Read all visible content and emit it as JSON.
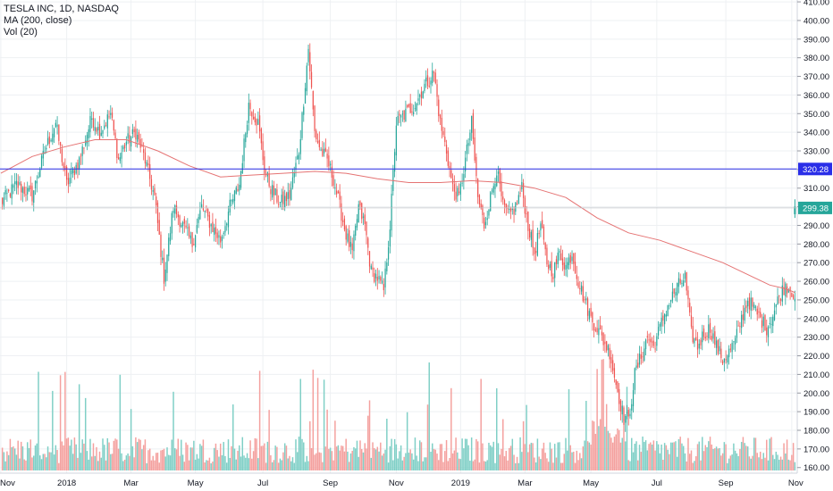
{
  "chart_data": {
    "type": "candlestick",
    "symbol_line": "TESLA INC, 1D, NASDAQ",
    "indicators": [
      "MA (200, close)",
      "Vol (20)"
    ],
    "y_ticks": [
      160,
      170,
      180,
      190,
      200,
      210,
      220,
      230,
      240,
      250,
      260,
      270,
      280,
      290,
      300,
      310,
      320,
      330,
      340,
      350,
      360,
      370,
      380,
      390,
      400,
      410
    ],
    "y_tick_labels": [
      "160.00",
      "170.00",
      "180.00",
      "190.00",
      "200.00",
      "210.00",
      "220.00",
      "230.00",
      "240.00",
      "250.00",
      "260.00",
      "270.00",
      "280.00",
      "290.00",
      "300.00",
      "310.00",
      "320.00",
      "330.00",
      "340.00",
      "350.00",
      "360.00",
      "370.00",
      "380.00",
      "390.00",
      "400.00",
      "410.00"
    ],
    "ylim": [
      157,
      411
    ],
    "x_ticks": [
      {
        "label": "Nov",
        "index": 0
      },
      {
        "label": "2018",
        "index": 42
      },
      {
        "label": "Mar",
        "index": 83
      },
      {
        "label": "May",
        "index": 124
      },
      {
        "label": "Jul",
        "index": 167
      },
      {
        "label": "Sep",
        "index": 210
      },
      {
        "label": "Nov",
        "index": 252
      },
      {
        "label": "2019",
        "index": 293
      },
      {
        "label": "Mar",
        "index": 334
      },
      {
        "label": "May",
        "index": 376
      },
      {
        "label": "Jul",
        "index": 418
      },
      {
        "label": "Sep",
        "index": 462
      },
      {
        "label": "Nov",
        "index": 504
      }
    ],
    "n_days": 508,
    "horizontal_line": {
      "value": 320.28,
      "label": "320.28",
      "color": "#2a2ee8"
    },
    "last_price": {
      "value": 299.38,
      "label": "299.38",
      "color": "#26a69a"
    },
    "anchors": [
      [
        0,
        302
      ],
      [
        10,
        312
      ],
      [
        20,
        306
      ],
      [
        28,
        330
      ],
      [
        35,
        345
      ],
      [
        42,
        312
      ],
      [
        50,
        325
      ],
      [
        58,
        348
      ],
      [
        63,
        340
      ],
      [
        70,
        350
      ],
      [
        75,
        325
      ],
      [
        80,
        335
      ],
      [
        86,
        340
      ],
      [
        92,
        325
      ],
      [
        98,
        305
      ],
      [
        104,
        262
      ],
      [
        110,
        300
      ],
      [
        116,
        290
      ],
      [
        122,
        280
      ],
      [
        128,
        300
      ],
      [
        134,
        290
      ],
      [
        140,
        282
      ],
      [
        146,
        300
      ],
      [
        152,
        312
      ],
      [
        158,
        355
      ],
      [
        164,
        345
      ],
      [
        168,
        320
      ],
      [
        172,
        310
      ],
      [
        178,
        302
      ],
      [
        184,
        306
      ],
      [
        190,
        330
      ],
      [
        196,
        385
      ],
      [
        200,
        340
      ],
      [
        204,
        330
      ],
      [
        208,
        325
      ],
      [
        212,
        315
      ],
      [
        216,
        300
      ],
      [
        220,
        285
      ],
      [
        224,
        275
      ],
      [
        228,
        300
      ],
      [
        232,
        290
      ],
      [
        236,
        265
      ],
      [
        240,
        262
      ],
      [
        244,
        255
      ],
      [
        248,
        290
      ],
      [
        252,
        345
      ],
      [
        258,
        350
      ],
      [
        264,
        355
      ],
      [
        270,
        365
      ],
      [
        276,
        372
      ],
      [
        280,
        345
      ],
      [
        284,
        330
      ],
      [
        288,
        310
      ],
      [
        292,
        305
      ],
      [
        296,
        325
      ],
      [
        300,
        345
      ],
      [
        304,
        305
      ],
      [
        308,
        290
      ],
      [
        312,
        305
      ],
      [
        316,
        320
      ],
      [
        320,
        300
      ],
      [
        324,
        295
      ],
      [
        328,
        300
      ],
      [
        332,
        310
      ],
      [
        336,
        290
      ],
      [
        340,
        275
      ],
      [
        344,
        290
      ],
      [
        348,
        270
      ],
      [
        352,
        265
      ],
      [
        356,
        275
      ],
      [
        360,
        268
      ],
      [
        364,
        275
      ],
      [
        368,
        260
      ],
      [
        372,
        250
      ],
      [
        376,
        240
      ],
      [
        380,
        235
      ],
      [
        384,
        228
      ],
      [
        388,
        222
      ],
      [
        392,
        205
      ],
      [
        396,
        190
      ],
      [
        400,
        185
      ],
      [
        404,
        210
      ],
      [
        408,
        220
      ],
      [
        412,
        230
      ],
      [
        416,
        225
      ],
      [
        420,
        235
      ],
      [
        424,
        245
      ],
      [
        428,
        252
      ],
      [
        432,
        258
      ],
      [
        436,
        262
      ],
      [
        440,
        232
      ],
      [
        444,
        225
      ],
      [
        448,
        232
      ],
      [
        452,
        235
      ],
      [
        456,
        225
      ],
      [
        460,
        218
      ],
      [
        464,
        222
      ],
      [
        468,
        228
      ],
      [
        472,
        240
      ],
      [
        476,
        250
      ],
      [
        480,
        245
      ],
      [
        484,
        240
      ],
      [
        488,
        235
      ],
      [
        492,
        242
      ],
      [
        496,
        252
      ],
      [
        500,
        258
      ],
      [
        504,
        255
      ],
      [
        506,
        252
      ]
    ],
    "ma_points": [
      [
        0,
        318
      ],
      [
        20,
        327
      ],
      [
        40,
        332
      ],
      [
        60,
        336
      ],
      [
        80,
        336
      ],
      [
        100,
        330
      ],
      [
        120,
        322
      ],
      [
        140,
        316
      ],
      [
        160,
        317
      ],
      [
        180,
        318
      ],
      [
        200,
        319
      ],
      [
        220,
        318
      ],
      [
        240,
        315
      ],
      [
        260,
        313
      ],
      [
        280,
        313
      ],
      [
        300,
        314
      ],
      [
        320,
        313
      ],
      [
        340,
        310
      ],
      [
        360,
        305
      ],
      [
        380,
        294
      ],
      [
        400,
        286
      ],
      [
        420,
        282
      ],
      [
        440,
        276
      ],
      [
        460,
        270
      ],
      [
        480,
        262
      ],
      [
        490,
        258
      ],
      [
        500,
        256
      ],
      [
        506,
        254
      ]
    ],
    "colors": {
      "up": "#26a69a",
      "down": "#ef5350",
      "vol_up": "#7fcfc6",
      "vol_down": "#f4a09e",
      "ma": "#e57373",
      "grid": "#eef0f3"
    }
  }
}
